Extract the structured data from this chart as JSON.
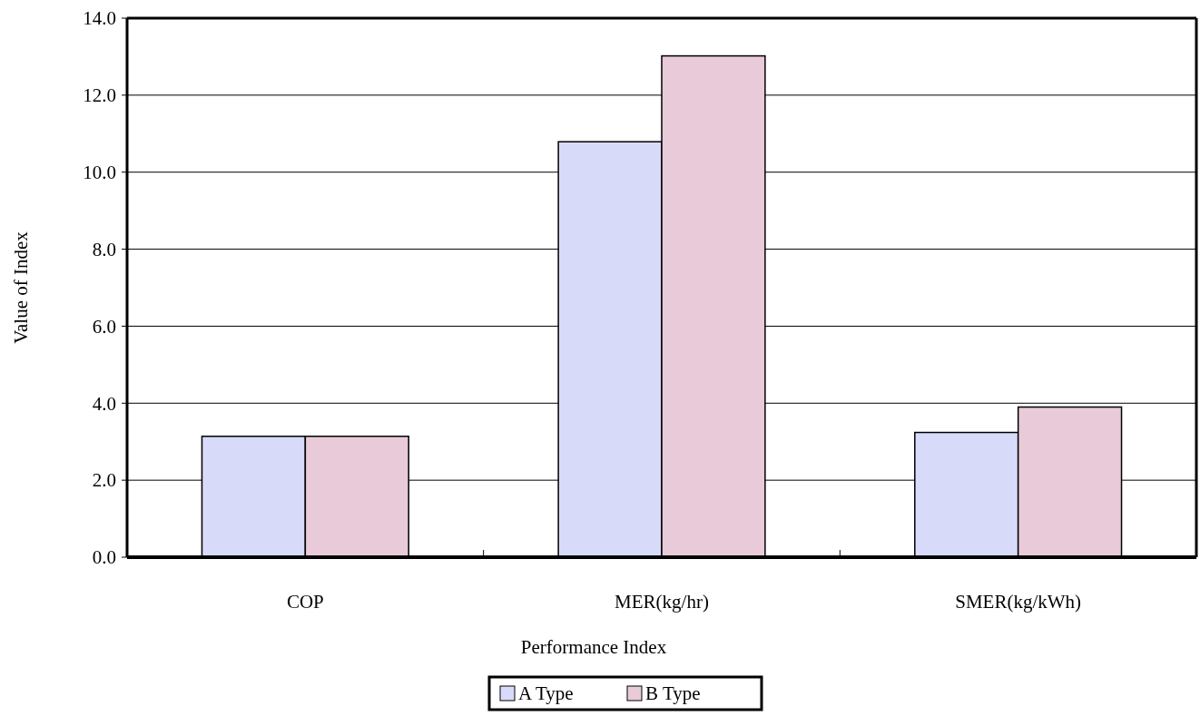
{
  "chart_data": {
    "type": "bar",
    "xlabel": "Performance Index",
    "ylabel": "Value of Index",
    "categories": [
      "COP",
      "MER(kg/hr)",
      "SMER(kg/kWh)"
    ],
    "series": [
      {
        "name": "A Type",
        "color": "#d8dafa",
        "values": [
          3.14,
          10.79,
          3.24
        ]
      },
      {
        "name": "B Type",
        "color": "#e8cad8",
        "values": [
          3.14,
          13.02,
          3.9
        ]
      }
    ],
    "ylim": [
      0,
      14
    ],
    "yticks": [
      {
        "value": 0,
        "label": "0.0"
      },
      {
        "value": 2,
        "label": "2.0"
      },
      {
        "value": 4,
        "label": "4.0"
      },
      {
        "value": 6,
        "label": "6.0"
      },
      {
        "value": 8,
        "label": "8.0"
      },
      {
        "value": 10,
        "label": "10.0"
      },
      {
        "value": 12,
        "label": "12.0"
      },
      {
        "value": 14,
        "label": "14.0"
      }
    ],
    "grid": "y",
    "legend": "bottom"
  }
}
